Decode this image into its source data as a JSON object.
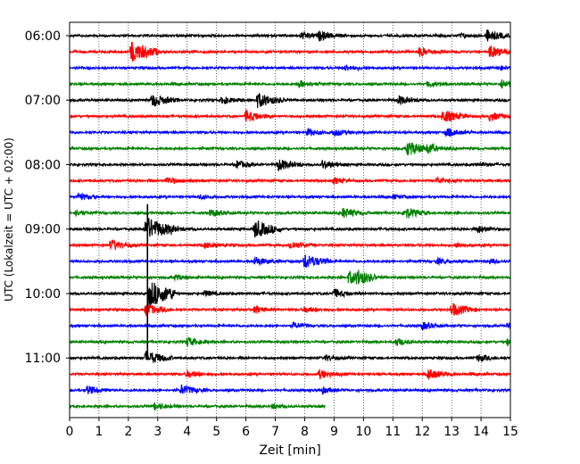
{
  "chart_data": {
    "type": "line",
    "title": "",
    "xlabel": "Zeit  [min]",
    "ylabel": "UTC (Lokalzeit = UTC + 02:00)",
    "xlim": [
      0,
      15
    ],
    "x_ticks": [
      "0",
      "1",
      "2",
      "3",
      "4",
      "5",
      "6",
      "7",
      "8",
      "9",
      "10",
      "11",
      "12",
      "13",
      "14",
      "15"
    ],
    "y_ticks": [
      "06:00",
      "07:00",
      "08:00",
      "09:00",
      "10:00",
      "11:00"
    ],
    "grid": {
      "x": true,
      "y": false,
      "style": "dotted"
    },
    "trace_colors": [
      "#000000",
      "#ff0000",
      "#0000ff",
      "#008000"
    ],
    "trace_interval_min": 15,
    "traces": [
      {
        "start": "06:00",
        "end_min": 15,
        "events": [
          [
            7.9,
            0.5
          ],
          [
            8.5,
            0.6
          ],
          [
            13.3,
            0.3
          ],
          [
            14.2,
            0.8
          ]
        ]
      },
      {
        "start": "06:15",
        "end_min": 15,
        "events": [
          [
            2.1,
            1.4
          ],
          [
            11.9,
            0.6
          ],
          [
            14.3,
            0.8
          ]
        ]
      },
      {
        "start": "06:30",
        "end_min": 15,
        "events": [
          [
            9.4,
            0.4
          ],
          [
            14.6,
            0.3
          ]
        ]
      },
      {
        "start": "06:45",
        "end_min": 15,
        "events": [
          [
            7.8,
            0.5
          ],
          [
            12.2,
            0.4
          ],
          [
            14.7,
            0.6
          ]
        ]
      },
      {
        "start": "07:00",
        "end_min": 15,
        "events": [
          [
            2.8,
            0.9
          ],
          [
            5.2,
            0.5
          ],
          [
            6.4,
            1.0
          ],
          [
            11.2,
            0.6
          ]
        ]
      },
      {
        "start": "07:15",
        "end_min": 15,
        "events": [
          [
            6.0,
            0.8
          ],
          [
            12.7,
            0.9
          ],
          [
            14.3,
            0.6
          ]
        ]
      },
      {
        "start": "07:30",
        "end_min": 15,
        "events": [
          [
            8.1,
            0.5
          ],
          [
            9.0,
            0.5
          ],
          [
            12.8,
            0.6
          ]
        ]
      },
      {
        "start": "07:45",
        "end_min": 15,
        "events": [
          [
            11.5,
            1.0
          ],
          [
            12.2,
            0.5
          ]
        ]
      },
      {
        "start": "08:00",
        "end_min": 15,
        "events": [
          [
            5.7,
            0.5
          ],
          [
            7.1,
            0.8
          ],
          [
            8.6,
            0.6
          ],
          [
            13.9,
            0.3
          ]
        ]
      },
      {
        "start": "08:15",
        "end_min": 15,
        "events": [
          [
            3.3,
            0.5
          ],
          [
            9.0,
            0.4
          ],
          [
            12.5,
            0.4
          ]
        ]
      },
      {
        "start": "08:30",
        "end_min": 15,
        "events": [
          [
            0.3,
            0.5
          ],
          [
            4.4,
            0.3
          ],
          [
            11.0,
            0.3
          ]
        ]
      },
      {
        "start": "08:45",
        "end_min": 15,
        "events": [
          [
            0.2,
            0.4
          ],
          [
            4.8,
            0.5
          ],
          [
            9.3,
            0.7
          ],
          [
            11.4,
            0.8
          ]
        ]
      },
      {
        "start": "09:00",
        "end_min": 15,
        "events": [
          [
            2.6,
            1.6
          ],
          [
            3.5,
            0.4
          ],
          [
            6.3,
            1.2
          ],
          [
            13.9,
            0.5
          ]
        ]
      },
      {
        "start": "09:15",
        "end_min": 15,
        "events": [
          [
            1.4,
            0.7
          ],
          [
            4.6,
            0.4
          ],
          [
            7.5,
            0.6
          ],
          [
            13.2,
            0.3
          ]
        ]
      },
      {
        "start": "09:30",
        "end_min": 15,
        "events": [
          [
            6.3,
            0.6
          ],
          [
            8.0,
            1.0
          ],
          [
            12.5,
            0.4
          ],
          [
            14.3,
            0.3
          ]
        ]
      },
      {
        "start": "09:45",
        "end_min": 15,
        "events": [
          [
            3.6,
            0.4
          ],
          [
            9.5,
            0.9
          ],
          [
            9.8,
            0.7
          ]
        ]
      },
      {
        "start": "10:00",
        "end_min": 15,
        "events": [
          [
            2.7,
            1.8
          ],
          [
            4.6,
            0.4
          ],
          [
            9.0,
            0.6
          ]
        ]
      },
      {
        "start": "10:15",
        "end_min": 15,
        "events": [
          [
            2.6,
            0.8
          ],
          [
            6.3,
            0.5
          ],
          [
            8.0,
            0.4
          ],
          [
            13.0,
            0.9
          ]
        ]
      },
      {
        "start": "10:30",
        "end_min": 15,
        "events": [
          [
            7.6,
            0.4
          ],
          [
            12.0,
            0.5
          ],
          [
            14.9,
            0.4
          ]
        ]
      },
      {
        "start": "10:45",
        "end_min": 15,
        "events": [
          [
            4.0,
            0.6
          ],
          [
            11.1,
            0.5
          ],
          [
            14.9,
            0.5
          ]
        ]
      },
      {
        "start": "11:00",
        "end_min": 15,
        "events": [
          [
            2.6,
            1.0
          ],
          [
            8.7,
            0.4
          ],
          [
            13.9,
            0.5
          ]
        ]
      },
      {
        "start": "11:15",
        "end_min": 15,
        "events": [
          [
            4.0,
            0.5
          ],
          [
            8.5,
            0.6
          ],
          [
            12.2,
            0.7
          ]
        ]
      },
      {
        "start": "11:30",
        "end_min": 15,
        "events": [
          [
            0.6,
            0.6
          ],
          [
            3.8,
            0.7
          ],
          [
            8.6,
            0.4
          ]
        ]
      },
      {
        "start": "11:45",
        "end_min": 8.7,
        "events": [
          [
            2.9,
            0.5
          ],
          [
            6.9,
            0.3
          ]
        ]
      }
    ]
  }
}
